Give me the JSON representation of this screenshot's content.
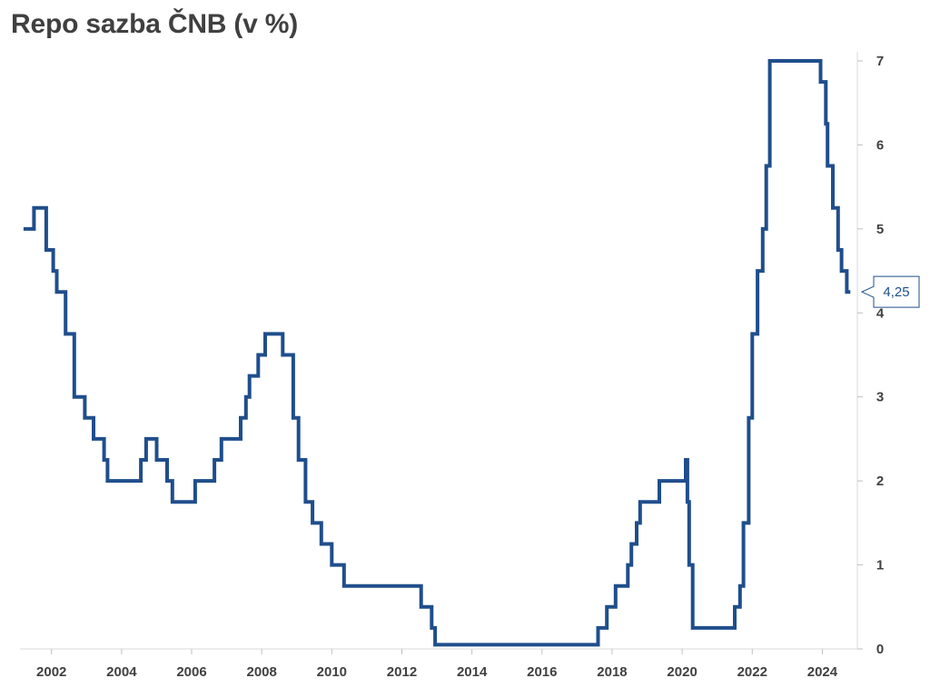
{
  "chart_data": {
    "type": "line",
    "title": "Repo sazba ČNB (v %)",
    "xlabel": "",
    "ylabel": "",
    "xlim": [
      2001.1,
      2025.0
    ],
    "ylim": [
      0,
      7
    ],
    "x_ticks": [
      2002,
      2004,
      2006,
      2008,
      2010,
      2012,
      2014,
      2016,
      2018,
      2020,
      2022,
      2024
    ],
    "y_ticks": [
      0,
      1,
      2,
      3,
      4,
      5,
      6,
      7
    ],
    "y_axis_side": "right",
    "grid": false,
    "line_color": "#1f4e8c",
    "series": [
      {
        "name": "",
        "step": true,
        "x": [
          2001.2,
          2001.5,
          2001.85,
          2002.05,
          2002.15,
          2002.4,
          2002.65,
          2002.95,
          2003.2,
          2003.5,
          2003.6,
          2004.55,
          2004.7,
          2005.0,
          2005.3,
          2005.45,
          2005.55,
          2006.1,
          2006.65,
          2006.85,
          2007.4,
          2007.55,
          2007.65,
          2007.9,
          2008.1,
          2008.3,
          2008.6,
          2008.9,
          2009.05,
          2009.25,
          2009.45,
          2009.7,
          2010.0,
          2010.35,
          2012.55,
          2012.85,
          2012.95,
          2017.6,
          2017.85,
          2018.1,
          2018.45,
          2018.55,
          2018.7,
          2018.8,
          2019.35,
          2020.1,
          2020.15,
          2020.2,
          2020.3,
          2020.4,
          2021.5,
          2021.65,
          2021.75,
          2021.9,
          2022.0,
          2022.15,
          2022.3,
          2022.4,
          2022.5,
          2022.6,
          2023.95,
          2024.1,
          2024.15,
          2024.3,
          2024.45,
          2024.55,
          2024.7,
          2024.8
        ],
        "y": [
          5,
          5.25,
          4.75,
          4.5,
          4.25,
          3.75,
          3,
          2.75,
          2.5,
          2.25,
          2,
          2.25,
          2.5,
          2.25,
          2,
          1.75,
          1.75,
          2,
          2.25,
          2.5,
          2.75,
          3,
          3.25,
          3.5,
          3.75,
          3.75,
          3.5,
          2.75,
          2.25,
          1.75,
          1.5,
          1.25,
          1,
          0.75,
          0.5,
          0.25,
          0.05,
          0.25,
          0.5,
          0.75,
          1,
          1.25,
          1.5,
          1.75,
          2,
          2.25,
          1.75,
          1,
          0.25,
          0.25,
          0.5,
          0.75,
          1.5,
          2.75,
          3.75,
          4.5,
          5,
          5.75,
          7,
          7,
          6.75,
          6.25,
          5.75,
          5.25,
          4.75,
          4.5,
          4.25,
          4.25
        ]
      }
    ],
    "callout": {
      "label": "4,25",
      "value": 4.25
    }
  }
}
